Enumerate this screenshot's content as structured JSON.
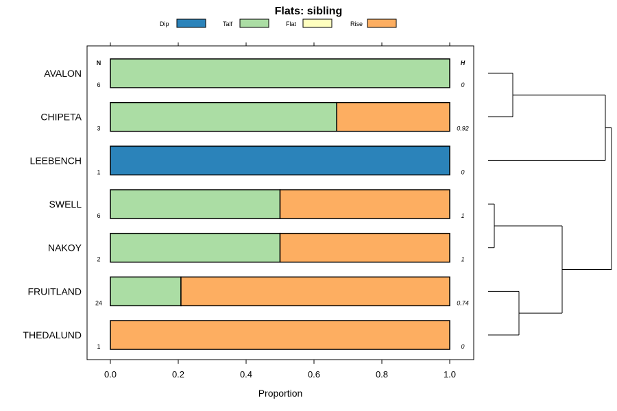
{
  "chart_data": {
    "type": "bar",
    "orientation": "horizontal-stacked",
    "title": "Flats: sibling",
    "xlabel": "Proportion",
    "ylabel": "",
    "xlim": [
      0,
      1
    ],
    "x_ticks": [
      "0.0",
      "0.2",
      "0.4",
      "0.6",
      "0.8",
      "1.0"
    ],
    "legend": {
      "placement": "top",
      "entries": [
        {
          "name": "Dip",
          "color": "#2b83ba"
        },
        {
          "name": "Talf",
          "color": "#abdda4"
        },
        {
          "name": "Flat",
          "color": "#ffffbf"
        },
        {
          "name": "Rise",
          "color": "#fdae61"
        }
      ]
    },
    "n_header": "N",
    "h_header": "H",
    "categories": [
      "AVALON",
      "CHIPETA",
      "LEEBENCH",
      "SWELL",
      "NAKOY",
      "FRUITLAND",
      "THEDALUND"
    ],
    "n_values": [
      "6",
      "3",
      "1",
      "6",
      "2",
      "24",
      "1"
    ],
    "h_values": [
      "0",
      "0.92",
      "0",
      "1",
      "1",
      "0.74",
      "0"
    ],
    "series": [
      {
        "name": "Dip",
        "color": "#2b83ba",
        "values": [
          0,
          0,
          1,
          0,
          0,
          0,
          0
        ]
      },
      {
        "name": "Talf",
        "color": "#abdda4",
        "values": [
          1,
          0.667,
          0,
          0.5,
          0.5,
          0.208,
          0
        ]
      },
      {
        "name": "Flat",
        "color": "#ffffbf",
        "values": [
          0,
          0,
          0,
          0,
          0,
          0,
          0
        ]
      },
      {
        "name": "Rise",
        "color": "#fdae61",
        "values": [
          0,
          0.333,
          0,
          0.5,
          0.5,
          0.792,
          1
        ]
      }
    ],
    "dendrogram": {
      "merges": [
        [
          -1,
          -2,
          0.2
        ],
        [
          -4,
          -5,
          0.05
        ],
        [
          -6,
          -7,
          0.25
        ],
        [
          2,
          3,
          0.6
        ],
        [
          -3,
          1,
          0.95
        ],
        [
          5,
          4,
          1.0
        ]
      ]
    },
    "grid": false
  }
}
